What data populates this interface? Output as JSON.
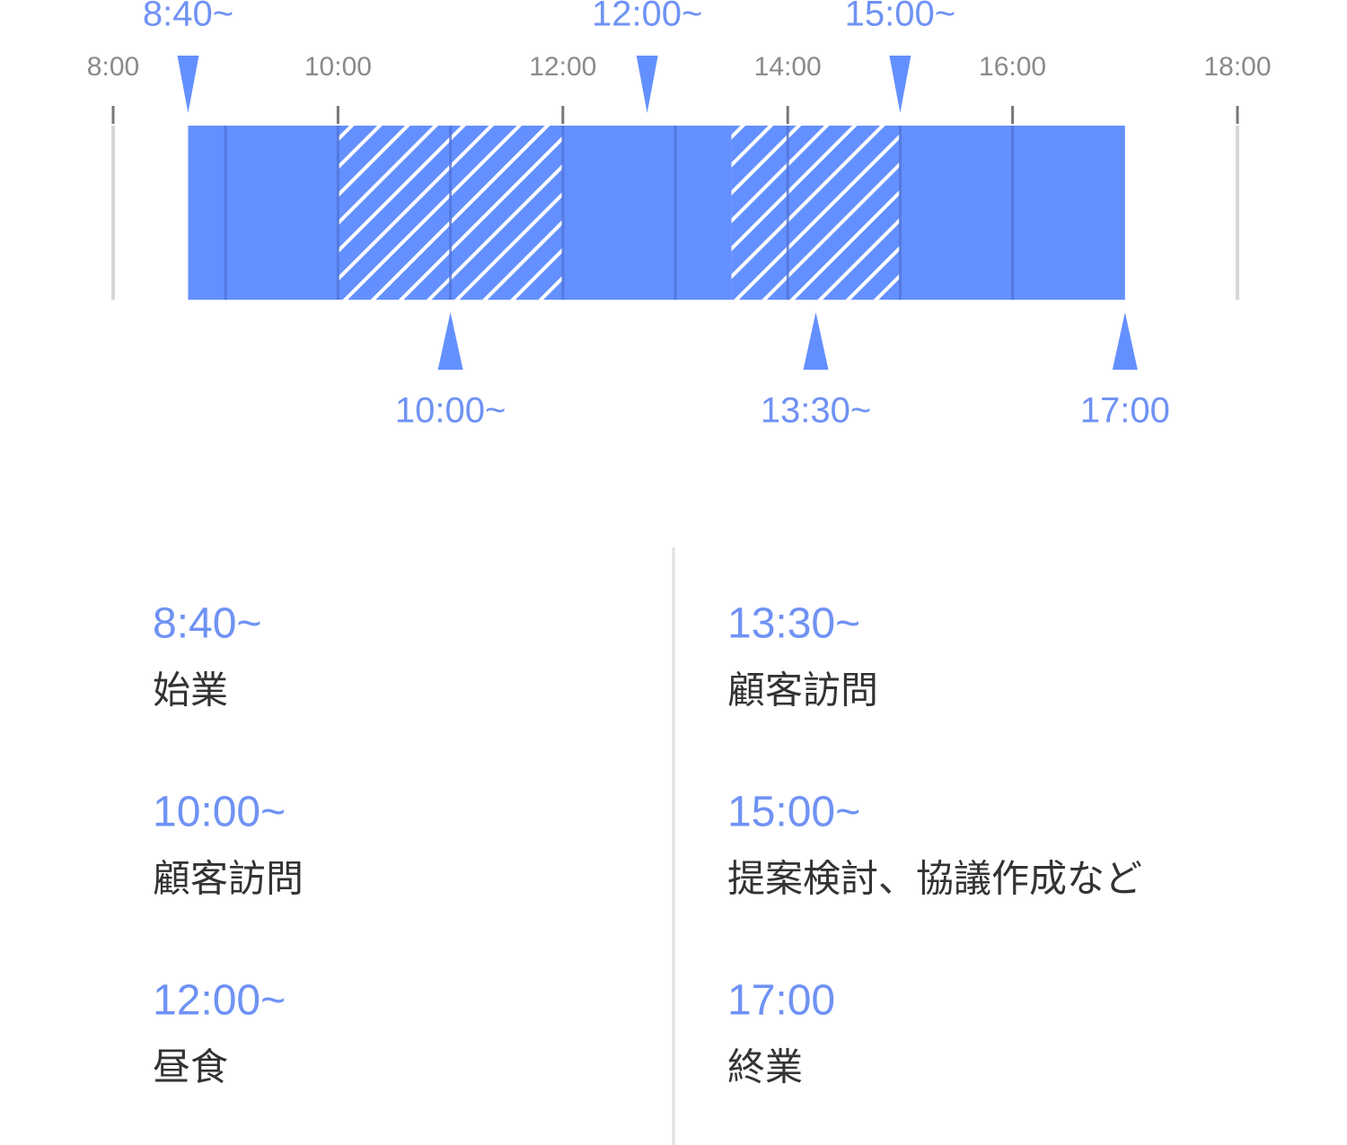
{
  "axis": {
    "ticks": [
      "8:00",
      "10:00",
      "12:00",
      "14:00",
      "16:00",
      "18:00"
    ]
  },
  "markers_above": [
    "8:40~",
    "12:00~",
    "15:00~"
  ],
  "markers_below": [
    "10:00~",
    "13:30~",
    "17:00"
  ],
  "schedule": [
    {
      "time": "8:40~",
      "task": "始業"
    },
    {
      "time": "10:00~",
      "task": "顧客訪問"
    },
    {
      "time": "12:00~",
      "task": "昼食"
    },
    {
      "time": "13:30~",
      "task": "顧客訪問"
    },
    {
      "time": "15:00~",
      "task": "提案検討、協議作成など"
    },
    {
      "time": "17:00",
      "task": "終業"
    }
  ]
}
